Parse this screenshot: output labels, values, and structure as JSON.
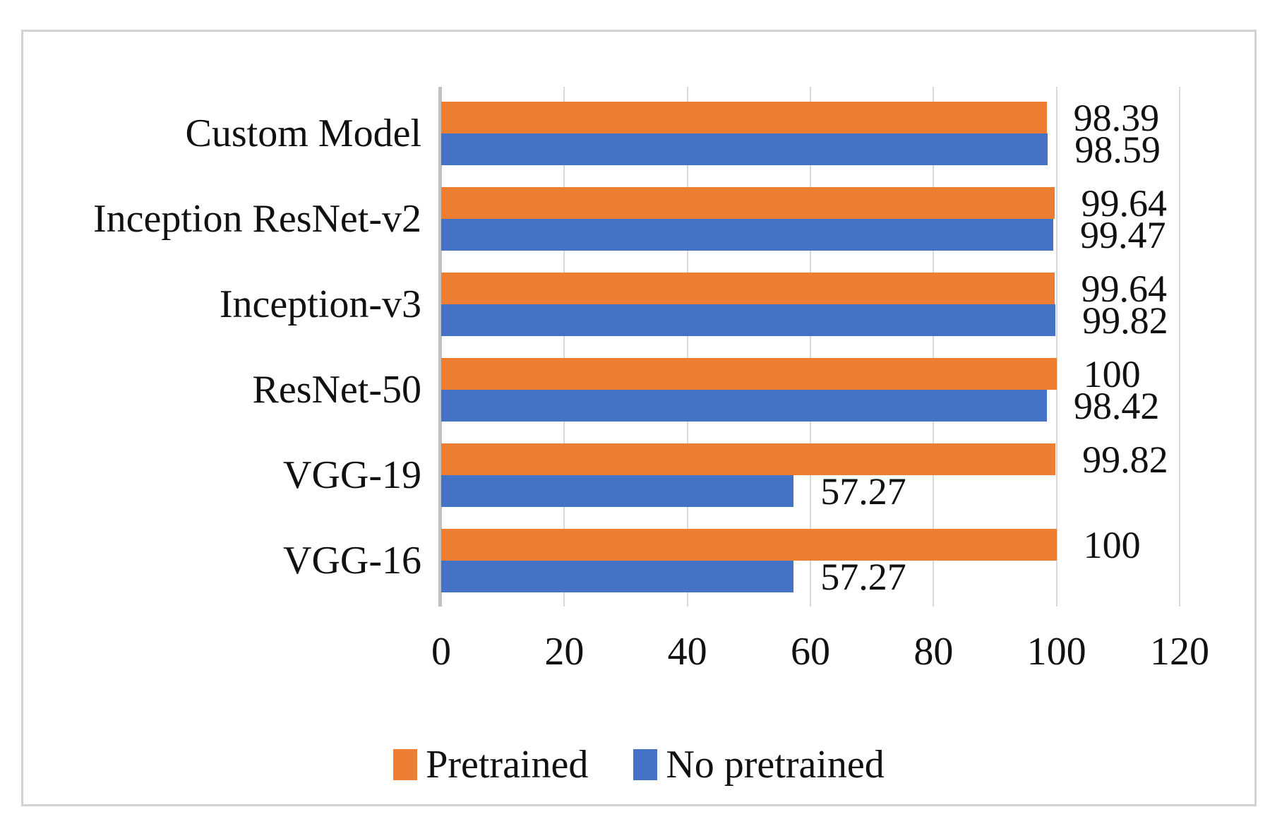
{
  "chart_data": {
    "type": "bar",
    "orientation": "horizontal",
    "title": "",
    "categories": [
      "Custom Model",
      "Inception ResNet-v2",
      "Inception-v3",
      "ResNet-50",
      "VGG-19",
      "VGG-16"
    ],
    "series": [
      {
        "name": "Pretrained",
        "color": "#ED7D31",
        "values": [
          98.39,
          99.64,
          99.64,
          100,
          99.82,
          100
        ],
        "data_labels": [
          "98.39",
          "99.64",
          "99.64",
          "100",
          "99.82",
          "100"
        ]
      },
      {
        "name": "No pretrained",
        "color": "#4472C4",
        "values": [
          98.59,
          99.47,
          99.82,
          98.42,
          57.27,
          57.27
        ],
        "data_labels": [
          "98.59",
          "99.47",
          "99.82",
          "98.42",
          "57.27",
          "57.27"
        ]
      }
    ],
    "xlim": [
      0,
      120
    ],
    "xtick_values": [
      0,
      20,
      40,
      60,
      80,
      100,
      120
    ],
    "xtick_labels": [
      "0",
      "20",
      "40",
      "60",
      "80",
      "100",
      "120"
    ],
    "grid": true,
    "legend_position": "bottom"
  },
  "styles": {
    "gridline_color": "#D9D9D9",
    "axis_line_color": "#C0C0C0",
    "frame_border_color": "#D2D2D2",
    "text_color": "#111111",
    "background_color": "#FFFFFF"
  }
}
